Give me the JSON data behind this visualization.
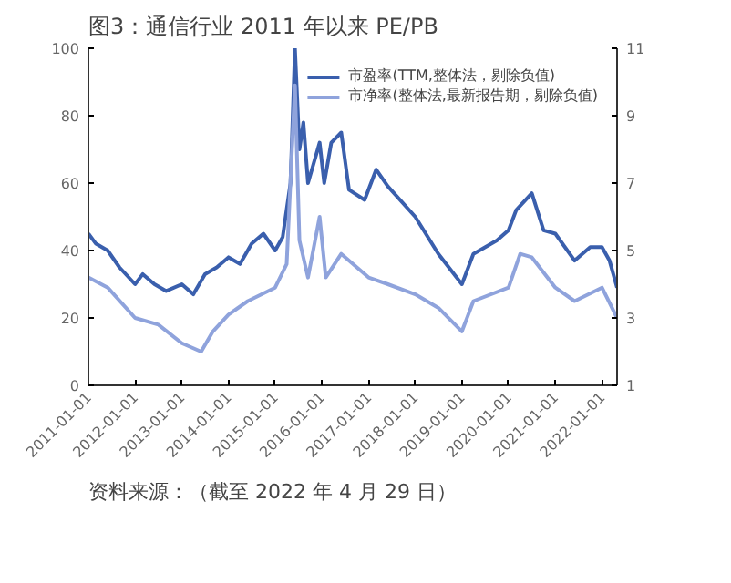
{
  "chart_data": {
    "type": "line",
    "title": "图3：通信行业 2011 年以来 PE/PB",
    "annotations": [
      "资料来源：（截至 2022 年 4 月 29 日）"
    ],
    "legend": "top",
    "grid": false,
    "xlim": [
      "2011-01-01",
      "2022-04-29"
    ],
    "xticks": [
      "2011-01-01",
      "2012-01-01",
      "2013-01-01",
      "2014-01-01",
      "2015-01-01",
      "2016-01-01",
      "2017-01-01",
      "2018-01-01",
      "2019-01-01",
      "2020-01-01",
      "2021-01-01",
      "2022-01-01"
    ],
    "ylim": [
      0,
      100
    ],
    "yticks": [
      0,
      20,
      40,
      60,
      80,
      100
    ],
    "y2lim": [
      1,
      11
    ],
    "y2ticks": [
      1,
      3,
      5,
      7,
      9,
      11
    ],
    "series": [
      {
        "name": "市盈率(TTM,整体法，剔除负值)",
        "color": "#3a5fad",
        "x": [
          "2011-01-01",
          "2011-03-01",
          "2011-06-01",
          "2011-09-01",
          "2012-01-01",
          "2012-03-01",
          "2012-06-01",
          "2012-09-01",
          "2013-01-01",
          "2013-04-01",
          "2013-07-01",
          "2013-10-01",
          "2014-01-01",
          "2014-04-01",
          "2014-07-01",
          "2014-10-01",
          "2015-01-01",
          "2015-03-01",
          "2015-05-01",
          "2015-06-05",
          "2015-07-10",
          "2015-08-10",
          "2015-09-15",
          "2015-12-15",
          "2016-01-20",
          "2016-03-15",
          "2016-06-01",
          "2016-08-01",
          "2016-12-01",
          "2017-03-01",
          "2017-06-01",
          "2018-01-01",
          "2018-07-01",
          "2019-01-01",
          "2019-04-01",
          "2019-10-01",
          "2020-01-01",
          "2020-03-01",
          "2020-07-01",
          "2020-10-01",
          "2021-01-01",
          "2021-06-01",
          "2021-10-01",
          "2022-01-01",
          "2022-03-01",
          "2022-04-29"
        ],
        "values": [
          45,
          42,
          40,
          35,
          30,
          33,
          30,
          28,
          30,
          27,
          33,
          35,
          38,
          36,
          42,
          45,
          40,
          44,
          60,
          100,
          70,
          78,
          60,
          72,
          60,
          72,
          75,
          58,
          55,
          64,
          59,
          50,
          39,
          30,
          39,
          43,
          46,
          52,
          57,
          46,
          45,
          37,
          41,
          41,
          37,
          29
        ]
      },
      {
        "name": "市净率(整体法,最新报告期，剔除负值)",
        "color": "#8fa3dc",
        "axis": "y2",
        "x": [
          "2011-01-01",
          "2011-06-01",
          "2012-01-01",
          "2012-07-01",
          "2013-01-01",
          "2013-06-01",
          "2013-09-01",
          "2014-01-01",
          "2014-06-01",
          "2015-01-01",
          "2015-04-01",
          "2015-06-05",
          "2015-07-10",
          "2015-09-15",
          "2015-12-15",
          "2016-02-01",
          "2016-06-01",
          "2017-01-01",
          "2017-06-01",
          "2018-01-01",
          "2018-07-01",
          "2019-01-01",
          "2019-04-01",
          "2020-01-01",
          "2020-04-01",
          "2020-07-01",
          "2021-01-01",
          "2021-06-01",
          "2022-01-01",
          "2022-04-29"
        ],
        "values": [
          4.2,
          3.9,
          3.0,
          2.8,
          2.25,
          2.0,
          2.6,
          3.1,
          3.5,
          3.9,
          4.6,
          9.9,
          5.3,
          4.2,
          6.0,
          4.2,
          4.9,
          4.2,
          4.0,
          3.7,
          3.3,
          2.6,
          3.5,
          3.9,
          4.9,
          4.8,
          3.9,
          3.5,
          3.9,
          3.0
        ]
      }
    ]
  }
}
